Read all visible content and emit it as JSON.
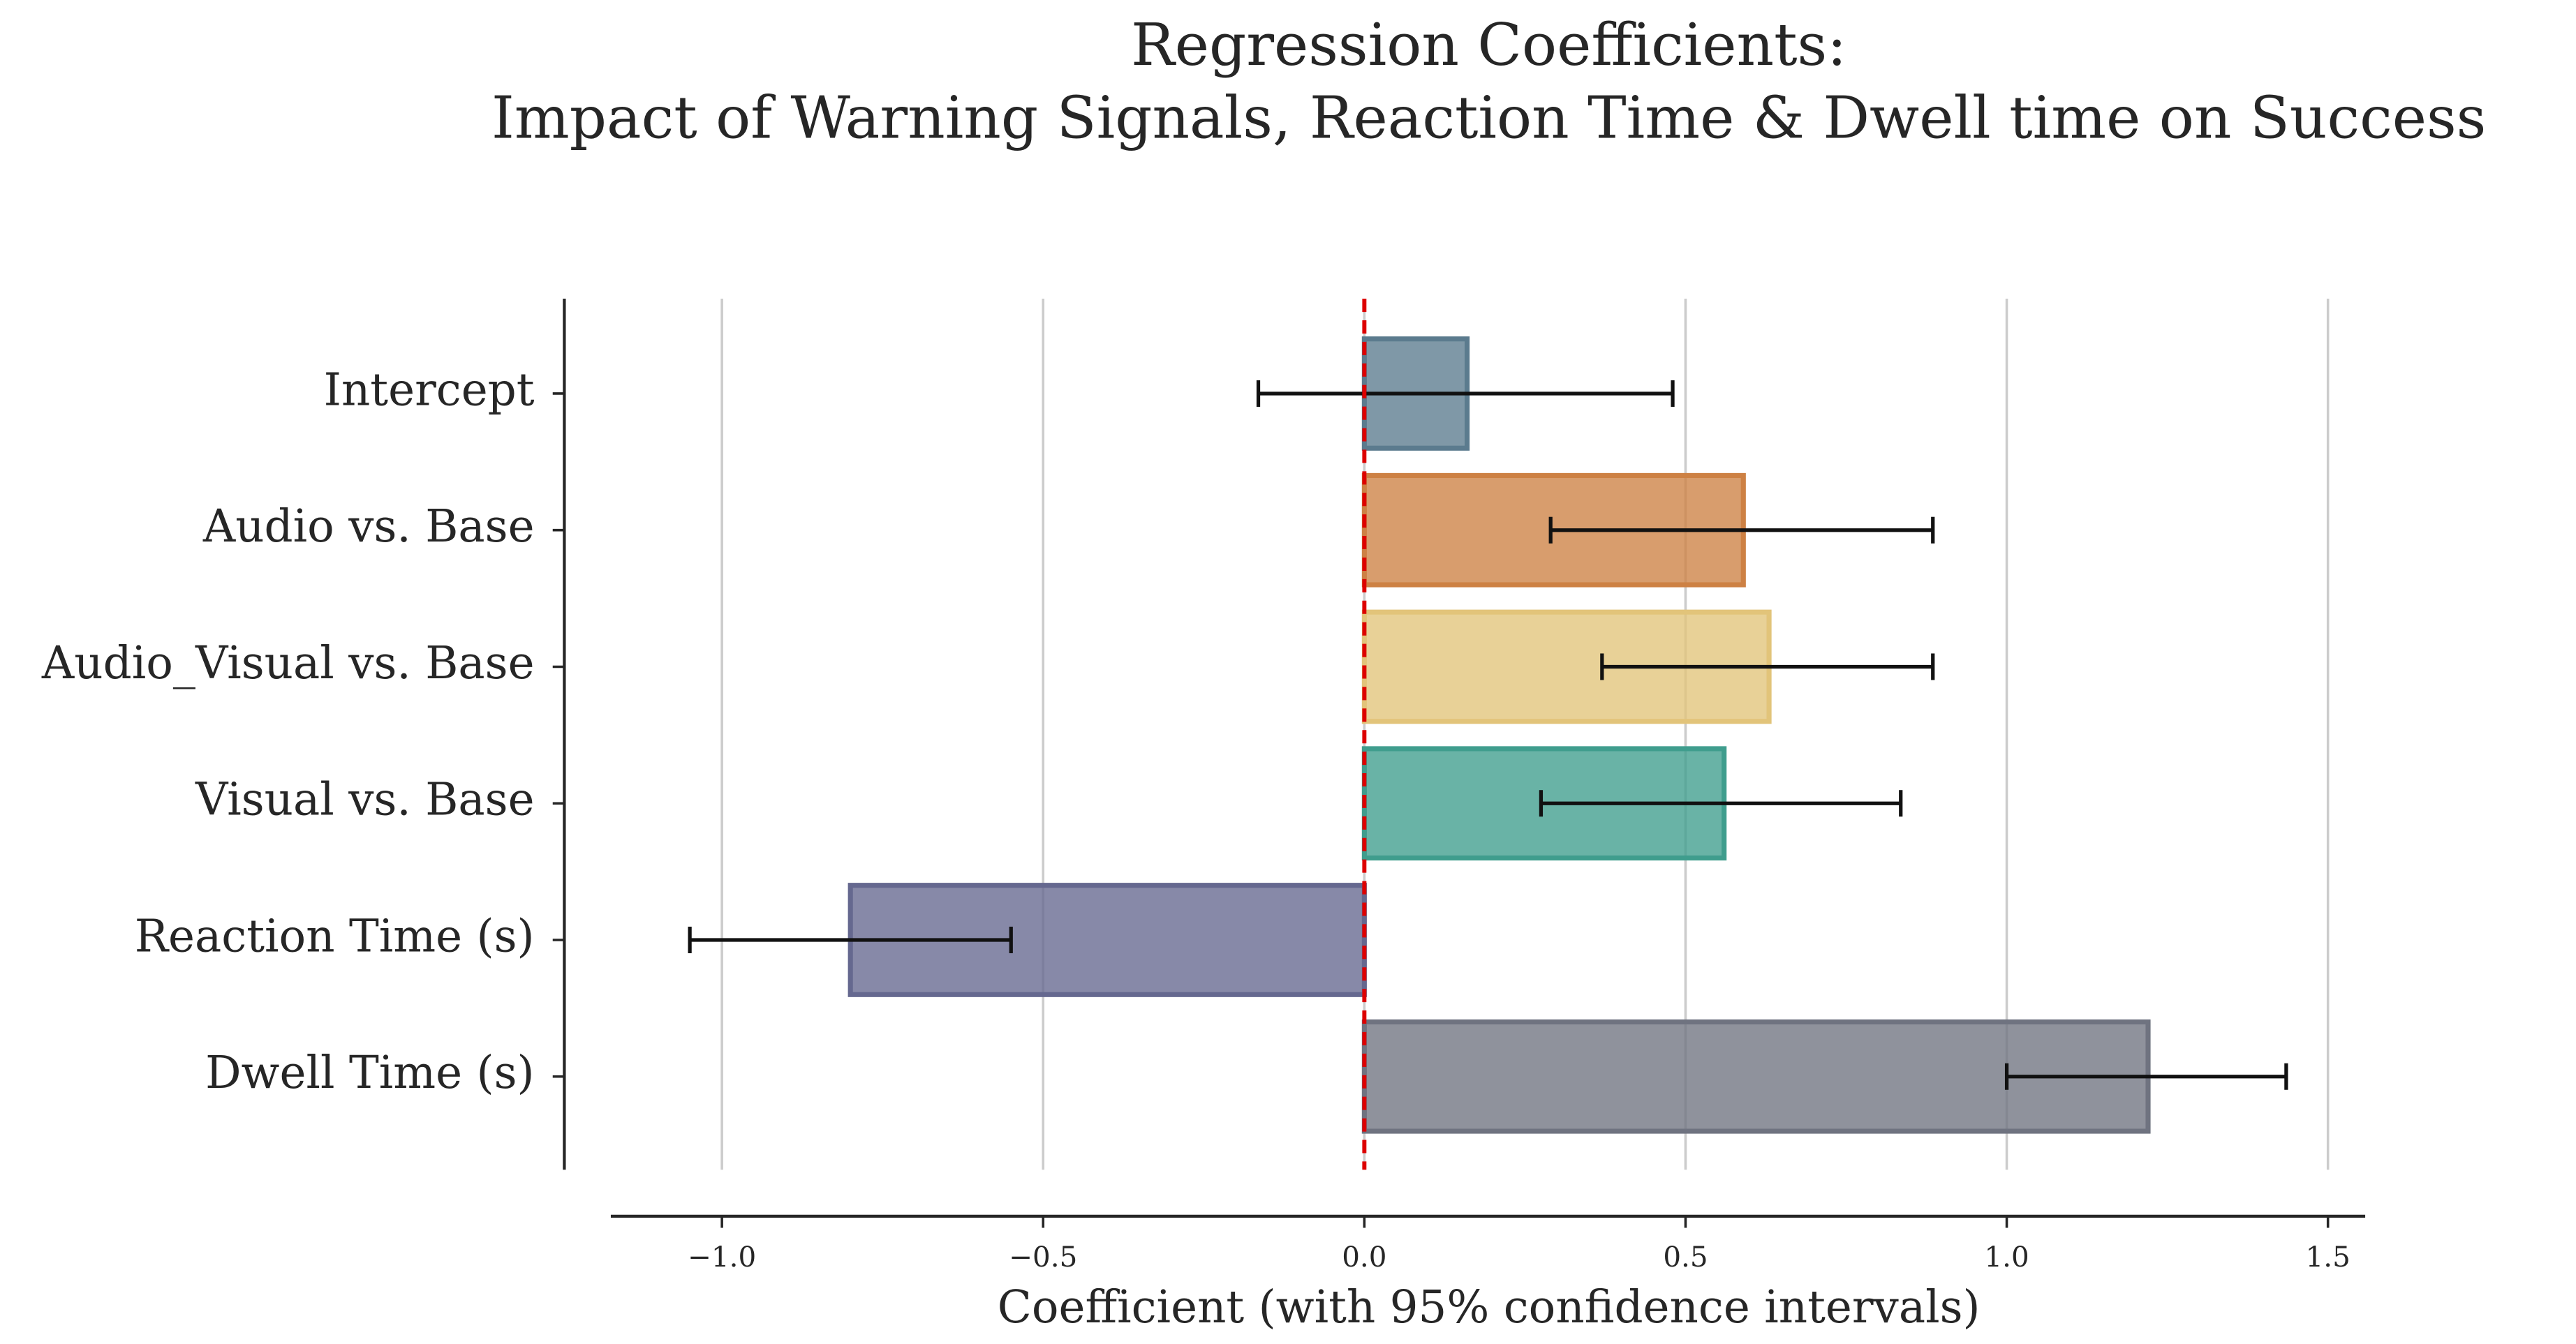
{
  "chart_data": {
    "type": "hbar",
    "title": [
      "Regression Coefficients:",
      "Impact of Warning Signals, Reaction Time & Dwell time on Success"
    ],
    "x_label": "Coefficient (with 95% confidence intervals)",
    "categories": [
      "Intercept",
      "Audio vs. Base",
      "Audio_Visual vs. Base",
      "Visual vs. Base",
      "Reaction Time (s)",
      "Dwell Time (s)"
    ],
    "values": [
      0.16,
      0.59,
      0.63,
      0.56,
      -0.8,
      1.22
    ],
    "ci_low": [
      -0.165,
      0.29,
      0.37,
      0.275,
      -1.05,
      1.0
    ],
    "ci_high": [
      0.48,
      0.885,
      0.885,
      0.835,
      -0.55,
      1.435
    ],
    "colors": [
      "#5b7b8e",
      "#cd8144",
      "#e2c47a",
      "#3f9d8d",
      "#65688f",
      "#6f7380"
    ],
    "xlim": [
      -1.173,
      1.558
    ],
    "xticks": [
      {
        "value": -1.0,
        "label": "−1.0"
      },
      {
        "value": -0.5,
        "label": "−0.5"
      },
      {
        "value": 0,
        "label": "0.0"
      },
      {
        "value": 0.5,
        "label": "0.5"
      },
      {
        "value": 1.0,
        "label": "1.0"
      },
      {
        "value": 1.5,
        "label": "1.5"
      }
    ],
    "reference_line": 0,
    "reference_color": "#dd0000",
    "grid": true
  }
}
